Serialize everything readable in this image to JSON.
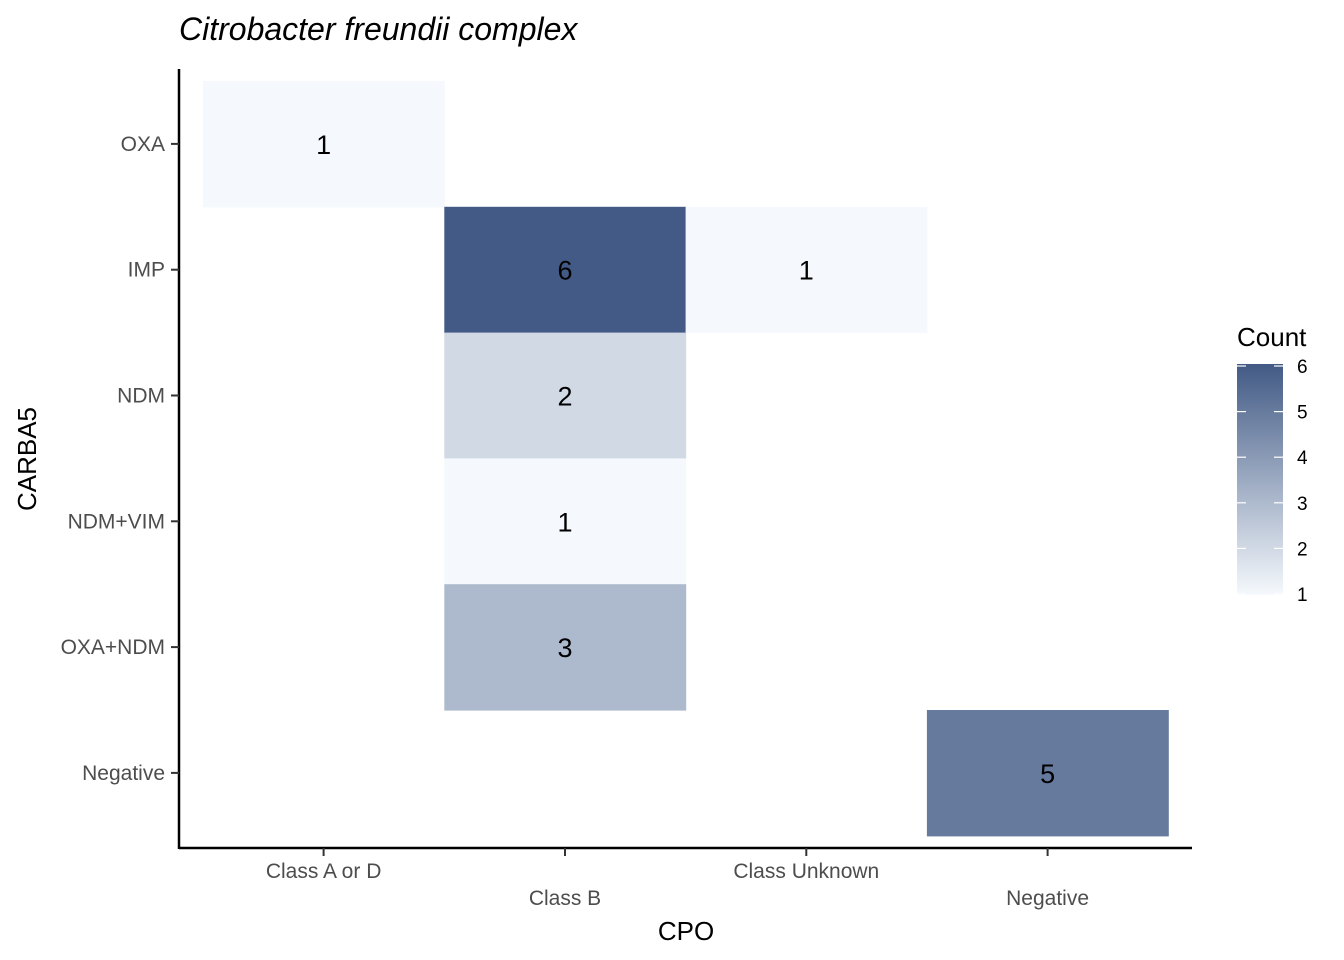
{
  "chart_data": {
    "type": "heatmap",
    "title": "Citrobacter freundii complex",
    "xlabel": "CPO",
    "ylabel": "CARBA5",
    "x_categories": [
      "Class A or D",
      "Class B",
      "Class Unknown",
      "Negative"
    ],
    "y_categories": [
      "OXA",
      "IMP",
      "NDM",
      "NDM+VIM",
      "OXA+NDM",
      "Negative"
    ],
    "cells": [
      {
        "x": "Class A or D",
        "y": "OXA",
        "value": 1
      },
      {
        "x": "Class B",
        "y": "IMP",
        "value": 6
      },
      {
        "x": "Class Unknown",
        "y": "IMP",
        "value": 1
      },
      {
        "x": "Class B",
        "y": "NDM",
        "value": 2
      },
      {
        "x": "Class B",
        "y": "NDM+VIM",
        "value": 1
      },
      {
        "x": "Class B",
        "y": "OXA+NDM",
        "value": 3
      },
      {
        "x": "Negative",
        "y": "Negative",
        "value": 5
      }
    ],
    "legend": {
      "title": "Count",
      "ticks": [
        1,
        2,
        3,
        4,
        5,
        6
      ],
      "low_color": "#f5f9fd",
      "high_color": "#425a85",
      "position": "right"
    },
    "x_tick_dodge": true,
    "grid": false
  }
}
